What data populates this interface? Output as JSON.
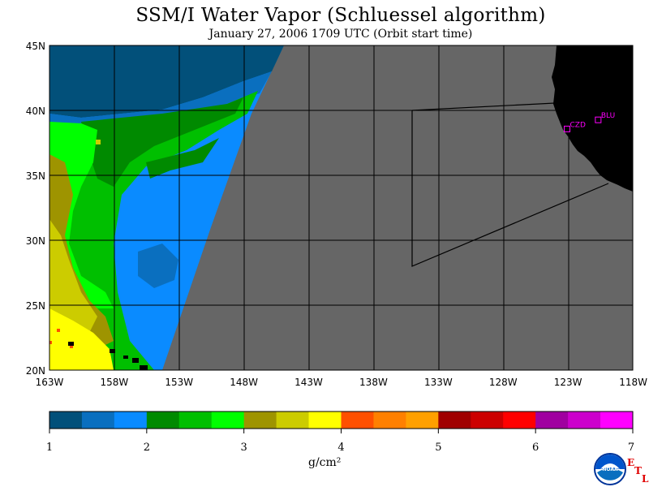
{
  "header": {
    "title": "SSM/I Water Vapor (Schluessel algorithm)",
    "subtitle": "January 27, 2006  1709 UTC  (Orbit start time)"
  },
  "map": {
    "lat_range": [
      20,
      45
    ],
    "lon_range": [
      -163,
      -118
    ],
    "lat_labels": [
      "45N",
      "40N",
      "35N",
      "30N",
      "25N",
      "20N"
    ],
    "lon_labels": [
      "163W",
      "158W",
      "153W",
      "148W",
      "143W",
      "138W",
      "133W",
      "128W",
      "123W",
      "118W"
    ],
    "colors": {
      "no_data": "#666666",
      "land": "#000000",
      "grid": "#000000",
      "station": "#ff00ff"
    },
    "stations": [
      {
        "id": "CZD",
        "lon": -123.1,
        "lat": 38.6
      },
      {
        "id": "BLU",
        "lon": -120.7,
        "lat": 39.3
      }
    ]
  },
  "colorbar": {
    "colors": [
      "#02507a",
      "#0a6fbf",
      "#0a8bff",
      "#008a00",
      "#00bf00",
      "#00ff00",
      "#9e9400",
      "#cccc00",
      "#ffff00",
      "#ff5000",
      "#ff8000",
      "#ffa000",
      "#a00000",
      "#cc0000",
      "#ff0000",
      "#a000a0",
      "#cc00cc",
      "#ff00ff"
    ],
    "labels": [
      "1",
      "2",
      "3",
      "4",
      "5",
      "6",
      "7"
    ],
    "unit": "g/cm²"
  },
  "logo": {
    "text": "NOAA",
    "etl_letters": [
      "E",
      "T",
      "L"
    ]
  }
}
